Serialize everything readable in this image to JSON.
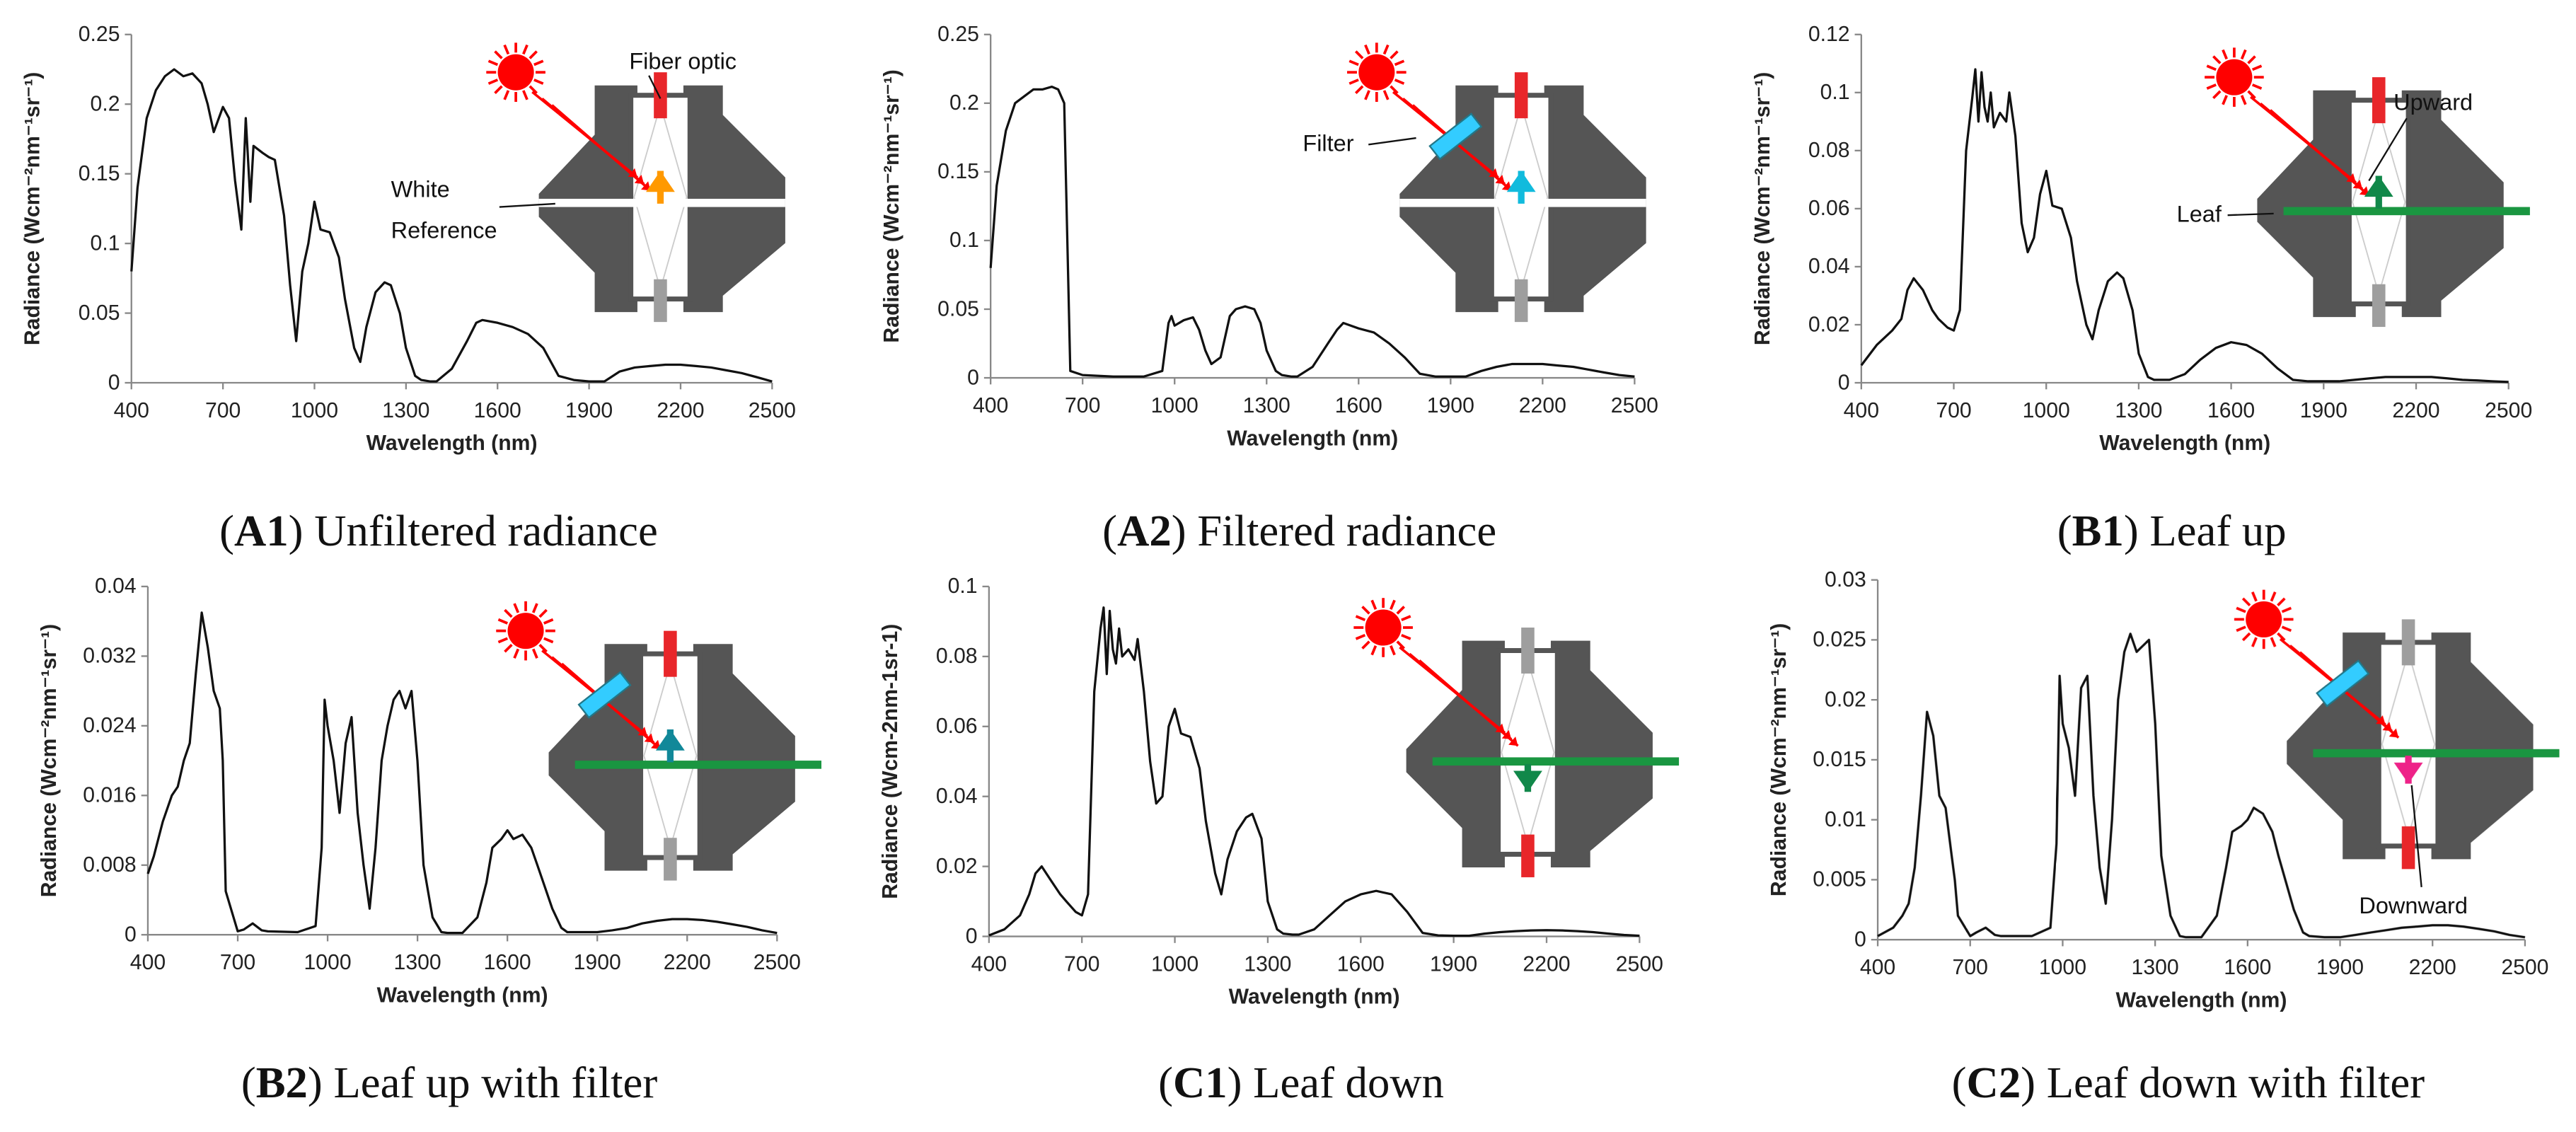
{
  "colors": {
    "line": "#111111",
    "device": "#555555",
    "sun": "#ff0000",
    "leaf": "#1a9641",
    "filter": "#33ccff",
    "fiber_red": "#e8262a",
    "fiber_gray": "#9e9e9e"
  },
  "chart_data": [
    {
      "type": "line",
      "id": "A1",
      "caption": {
        "prefix": "(",
        "label": "A1",
        "suffix": ") Unfiltered radiance"
      },
      "title": "",
      "xlabel": "Wavelength (nm)",
      "ylabel": "Radiance (Wcm⁻²nm⁻¹sr⁻¹)",
      "xlim": [
        400,
        2500
      ],
      "ylim": [
        0,
        0.25
      ],
      "xticks": [
        "400",
        "700",
        "1000",
        "1300",
        "1600",
        "1900",
        "2200",
        "2500"
      ],
      "yticks": [
        "0",
        "0.05",
        "0.1",
        "0.15",
        "0.2",
        "0.25"
      ],
      "annotations": [
        "Fiber optic",
        "White",
        "Reference"
      ],
      "x": [
        400,
        420,
        450,
        480,
        510,
        540,
        570,
        600,
        630,
        650,
        670,
        700,
        720,
        740,
        760,
        775,
        790,
        800,
        830,
        850,
        870,
        900,
        920,
        940,
        960,
        980,
        1000,
        1020,
        1050,
        1080,
        1100,
        1130,
        1150,
        1170,
        1200,
        1230,
        1250,
        1280,
        1300,
        1330,
        1350,
        1380,
        1400,
        1450,
        1500,
        1530,
        1550,
        1600,
        1650,
        1700,
        1750,
        1800,
        1850,
        1900,
        1950,
        2000,
        2050,
        2100,
        2150,
        2200,
        2250,
        2300,
        2350,
        2400,
        2450,
        2500
      ],
      "y": [
        0.08,
        0.14,
        0.19,
        0.21,
        0.22,
        0.225,
        0.22,
        0.222,
        0.215,
        0.2,
        0.18,
        0.198,
        0.19,
        0.145,
        0.11,
        0.19,
        0.13,
        0.17,
        0.165,
        0.162,
        0.16,
        0.12,
        0.07,
        0.03,
        0.08,
        0.1,
        0.13,
        0.11,
        0.108,
        0.09,
        0.06,
        0.025,
        0.015,
        0.04,
        0.065,
        0.072,
        0.07,
        0.05,
        0.025,
        0.005,
        0.002,
        0.001,
        0.001,
        0.01,
        0.03,
        0.043,
        0.045,
        0.043,
        0.04,
        0.035,
        0.025,
        0.005,
        0.002,
        0.001,
        0.001,
        0.008,
        0.011,
        0.012,
        0.013,
        0.013,
        0.012,
        0.011,
        0.009,
        0.007,
        0.004,
        0.001
      ]
    },
    {
      "type": "line",
      "id": "A2",
      "caption": {
        "prefix": "(",
        "label": "A2",
        "suffix": ") Filtered radiance"
      },
      "title": "",
      "xlabel": "Wavelength (nm)",
      "ylabel": "Radiance (Wcm⁻²nm⁻¹sr⁻¹)",
      "xlim": [
        400,
        2500
      ],
      "ylim": [
        0,
        0.25
      ],
      "xticks": [
        "400",
        "700",
        "1000",
        "1300",
        "1600",
        "1900",
        "2200",
        "2500"
      ],
      "yticks": [
        "0",
        "0.05",
        "0.1",
        "0.15",
        "0.2",
        "0.25"
      ],
      "annotations": [
        "Filter"
      ],
      "x": [
        400,
        420,
        450,
        480,
        510,
        540,
        570,
        600,
        620,
        640,
        650,
        660,
        700,
        800,
        900,
        960,
        980,
        990,
        1000,
        1030,
        1060,
        1080,
        1100,
        1120,
        1150,
        1180,
        1200,
        1230,
        1260,
        1280,
        1300,
        1330,
        1350,
        1380,
        1400,
        1450,
        1500,
        1530,
        1550,
        1600,
        1650,
        1700,
        1750,
        1800,
        1850,
        1900,
        1950,
        2000,
        2050,
        2100,
        2150,
        2200,
        2250,
        2300,
        2350,
        2400,
        2450,
        2500
      ],
      "y": [
        0.08,
        0.14,
        0.18,
        0.2,
        0.205,
        0.21,
        0.21,
        0.212,
        0.21,
        0.2,
        0.1,
        0.005,
        0.002,
        0.001,
        0.001,
        0.005,
        0.04,
        0.045,
        0.038,
        0.042,
        0.044,
        0.035,
        0.02,
        0.01,
        0.015,
        0.045,
        0.05,
        0.052,
        0.05,
        0.04,
        0.02,
        0.005,
        0.002,
        0.001,
        0.001,
        0.008,
        0.025,
        0.035,
        0.04,
        0.036,
        0.033,
        0.025,
        0.015,
        0.003,
        0.001,
        0.001,
        0.001,
        0.005,
        0.008,
        0.01,
        0.01,
        0.01,
        0.009,
        0.008,
        0.006,
        0.004,
        0.002,
        0.001
      ]
    },
    {
      "type": "line",
      "id": "B1",
      "caption": {
        "prefix": "(",
        "label": "B1",
        "suffix": ") Leaf up"
      },
      "title": "",
      "xlabel": "Wavelength (nm)",
      "ylabel": "Radiance (Wcm⁻²nm⁻¹sr⁻¹)",
      "xlim": [
        400,
        2500
      ],
      "ylim": [
        0,
        0.12
      ],
      "xticks": [
        "400",
        "700",
        "1000",
        "1300",
        "1600",
        "1900",
        "2200",
        "2500"
      ],
      "yticks": [
        "0",
        "0.02",
        "0.04",
        "0.06",
        "0.08",
        "0.1",
        "0.12"
      ],
      "annotations": [
        "Upward",
        "Leaf"
      ],
      "x": [
        400,
        450,
        500,
        530,
        550,
        570,
        600,
        630,
        650,
        680,
        700,
        720,
        740,
        760,
        770,
        780,
        790,
        800,
        810,
        820,
        830,
        850,
        870,
        880,
        900,
        920,
        940,
        960,
        980,
        1000,
        1020,
        1050,
        1080,
        1100,
        1130,
        1150,
        1170,
        1200,
        1230,
        1250,
        1280,
        1300,
        1330,
        1350,
        1380,
        1400,
        1450,
        1500,
        1550,
        1600,
        1650,
        1700,
        1750,
        1800,
        1850,
        1900,
        1950,
        2000,
        2050,
        2100,
        2150,
        2200,
        2250,
        2300,
        2350,
        2400,
        2450,
        2500
      ],
      "y": [
        0.006,
        0.013,
        0.018,
        0.022,
        0.032,
        0.036,
        0.032,
        0.025,
        0.022,
        0.019,
        0.018,
        0.025,
        0.08,
        0.098,
        0.108,
        0.09,
        0.107,
        0.095,
        0.09,
        0.1,
        0.088,
        0.093,
        0.09,
        0.1,
        0.085,
        0.055,
        0.045,
        0.05,
        0.065,
        0.073,
        0.061,
        0.06,
        0.05,
        0.035,
        0.02,
        0.015,
        0.025,
        0.035,
        0.038,
        0.036,
        0.025,
        0.01,
        0.002,
        0.001,
        0.001,
        0.001,
        0.003,
        0.008,
        0.012,
        0.014,
        0.013,
        0.01,
        0.005,
        0.001,
        0.0005,
        0.0005,
        0.0005,
        0.001,
        0.0015,
        0.002,
        0.002,
        0.002,
        0.002,
        0.0015,
        0.001,
        0.0008,
        0.0005,
        0.0003
      ]
    },
    {
      "type": "line",
      "id": "B2",
      "caption": {
        "prefix": "(",
        "label": "B2",
        "suffix": ") Leaf up with filter"
      },
      "title": "",
      "xlabel": "Wavelength (nm)",
      "ylabel": "Radiance (Wcm⁻²nm⁻¹sr⁻¹)",
      "xlim": [
        400,
        2500
      ],
      "ylim": [
        0,
        0.04
      ],
      "xticks": [
        "400",
        "700",
        "1000",
        "1300",
        "1600",
        "1900",
        "2200",
        "2500"
      ],
      "yticks": [
        "0",
        "0.008",
        "0.016",
        "0.024",
        "0.032",
        "0.04"
      ],
      "annotations": [],
      "x": [
        400,
        420,
        450,
        480,
        500,
        520,
        540,
        560,
        580,
        600,
        620,
        640,
        650,
        660,
        700,
        720,
        750,
        780,
        800,
        900,
        960,
        980,
        990,
        1000,
        1020,
        1040,
        1060,
        1080,
        1100,
        1120,
        1140,
        1160,
        1180,
        1200,
        1220,
        1240,
        1260,
        1280,
        1300,
        1320,
        1350,
        1380,
        1400,
        1450,
        1500,
        1530,
        1550,
        1580,
        1600,
        1620,
        1650,
        1680,
        1700,
        1750,
        1780,
        1800,
        1850,
        1900,
        1950,
        2000,
        2050,
        2100,
        2150,
        2200,
        2250,
        2300,
        2350,
        2400,
        2450,
        2500
      ],
      "y": [
        0.007,
        0.009,
        0.013,
        0.016,
        0.017,
        0.02,
        0.022,
        0.03,
        0.037,
        0.033,
        0.028,
        0.026,
        0.02,
        0.005,
        0.0004,
        0.0006,
        0.0013,
        0.0005,
        0.0004,
        0.0003,
        0.001,
        0.01,
        0.027,
        0.024,
        0.02,
        0.014,
        0.022,
        0.025,
        0.014,
        0.008,
        0.003,
        0.01,
        0.02,
        0.024,
        0.027,
        0.028,
        0.026,
        0.028,
        0.02,
        0.008,
        0.002,
        0.0003,
        0.0002,
        0.0002,
        0.002,
        0.006,
        0.01,
        0.011,
        0.012,
        0.011,
        0.0115,
        0.01,
        0.008,
        0.003,
        0.0008,
        0.0003,
        0.0003,
        0.0003,
        0.0005,
        0.0008,
        0.0013,
        0.0016,
        0.0018,
        0.0018,
        0.0017,
        0.0015,
        0.0012,
        0.0009,
        0.0005,
        0.0002
      ]
    },
    {
      "type": "line",
      "id": "C1",
      "caption": {
        "prefix": "(",
        "label": "C1",
        "suffix": ") Leaf down"
      },
      "title": "",
      "xlabel": "Wavelength (nm)",
      "ylabel": "Radiance (Wcm-2nm-1sr-1)",
      "xlim": [
        400,
        2500
      ],
      "ylim": [
        0,
        0.1
      ],
      "xticks": [
        "400",
        "700",
        "1000",
        "1300",
        "1600",
        "1900",
        "2200",
        "2500"
      ],
      "yticks": [
        "0",
        "0.02",
        "0.04",
        "0.06",
        "0.08",
        "0.1"
      ],
      "annotations": [],
      "x": [
        400,
        450,
        500,
        530,
        550,
        570,
        600,
        630,
        650,
        680,
        700,
        720,
        740,
        760,
        770,
        780,
        790,
        800,
        810,
        820,
        830,
        850,
        870,
        880,
        900,
        920,
        940,
        960,
        980,
        1000,
        1020,
        1050,
        1080,
        1100,
        1130,
        1150,
        1170,
        1200,
        1230,
        1250,
        1280,
        1300,
        1330,
        1350,
        1380,
        1400,
        1450,
        1500,
        1550,
        1600,
        1650,
        1700,
        1750,
        1800,
        1850,
        1900,
        1950,
        2000,
        2050,
        2100,
        2150,
        2200,
        2250,
        2300,
        2350,
        2400,
        2450,
        2500
      ],
      "y": [
        0.0003,
        0.002,
        0.006,
        0.012,
        0.018,
        0.02,
        0.016,
        0.012,
        0.01,
        0.007,
        0.006,
        0.012,
        0.07,
        0.088,
        0.094,
        0.075,
        0.093,
        0.082,
        0.078,
        0.088,
        0.08,
        0.082,
        0.079,
        0.085,
        0.07,
        0.05,
        0.038,
        0.04,
        0.06,
        0.065,
        0.058,
        0.057,
        0.048,
        0.033,
        0.018,
        0.012,
        0.022,
        0.03,
        0.034,
        0.035,
        0.028,
        0.01,
        0.002,
        0.0008,
        0.0005,
        0.0005,
        0.002,
        0.006,
        0.01,
        0.012,
        0.013,
        0.012,
        0.007,
        0.001,
        0.0003,
        0.0002,
        0.0002,
        0.0008,
        0.0012,
        0.0015,
        0.0017,
        0.0018,
        0.0017,
        0.0015,
        0.0012,
        0.0008,
        0.0004,
        0.0002
      ]
    },
    {
      "type": "line",
      "id": "C2",
      "caption": {
        "prefix": "(",
        "label": "C2",
        "suffix": ") Leaf down with filter"
      },
      "title": "",
      "xlabel": "Wavelength (nm)",
      "ylabel": "Radiance (Wcm⁻²nm⁻¹sr⁻¹)",
      "xlim": [
        400,
        2500
      ],
      "ylim": [
        0,
        0.03
      ],
      "xticks": [
        "400",
        "700",
        "1000",
        "1300",
        "1600",
        "1900",
        "2200",
        "2500"
      ],
      "yticks": [
        "0",
        "0.005",
        "0.01",
        "0.015",
        "0.02",
        "0.025",
        "0.03"
      ],
      "annotations": [
        "Downward"
      ],
      "x": [
        400,
        450,
        480,
        500,
        520,
        540,
        560,
        580,
        600,
        620,
        640,
        650,
        660,
        700,
        720,
        750,
        780,
        800,
        900,
        960,
        980,
        990,
        1000,
        1020,
        1040,
        1060,
        1080,
        1100,
        1120,
        1140,
        1160,
        1180,
        1200,
        1220,
        1240,
        1260,
        1280,
        1300,
        1320,
        1350,
        1380,
        1400,
        1450,
        1500,
        1530,
        1550,
        1580,
        1600,
        1620,
        1650,
        1680,
        1700,
        1750,
        1780,
        1800,
        1850,
        1900,
        1950,
        2000,
        2050,
        2100,
        2150,
        2200,
        2250,
        2300,
        2350,
        2400,
        2450,
        2500
      ],
      "y": [
        0.0003,
        0.001,
        0.002,
        0.003,
        0.006,
        0.012,
        0.019,
        0.017,
        0.012,
        0.011,
        0.007,
        0.005,
        0.002,
        0.0003,
        0.0006,
        0.001,
        0.0004,
        0.0003,
        0.0003,
        0.001,
        0.008,
        0.022,
        0.018,
        0.016,
        0.012,
        0.021,
        0.022,
        0.012,
        0.006,
        0.003,
        0.01,
        0.02,
        0.024,
        0.0255,
        0.024,
        0.0245,
        0.025,
        0.018,
        0.007,
        0.002,
        0.0003,
        0.0002,
        0.0002,
        0.002,
        0.006,
        0.009,
        0.0095,
        0.01,
        0.011,
        0.0105,
        0.009,
        0.007,
        0.0025,
        0.0006,
        0.0003,
        0.0002,
        0.0002,
        0.0004,
        0.0006,
        0.0008,
        0.001,
        0.0011,
        0.0012,
        0.0012,
        0.0011,
        0.0009,
        0.0007,
        0.0004,
        0.0002
      ]
    }
  ]
}
